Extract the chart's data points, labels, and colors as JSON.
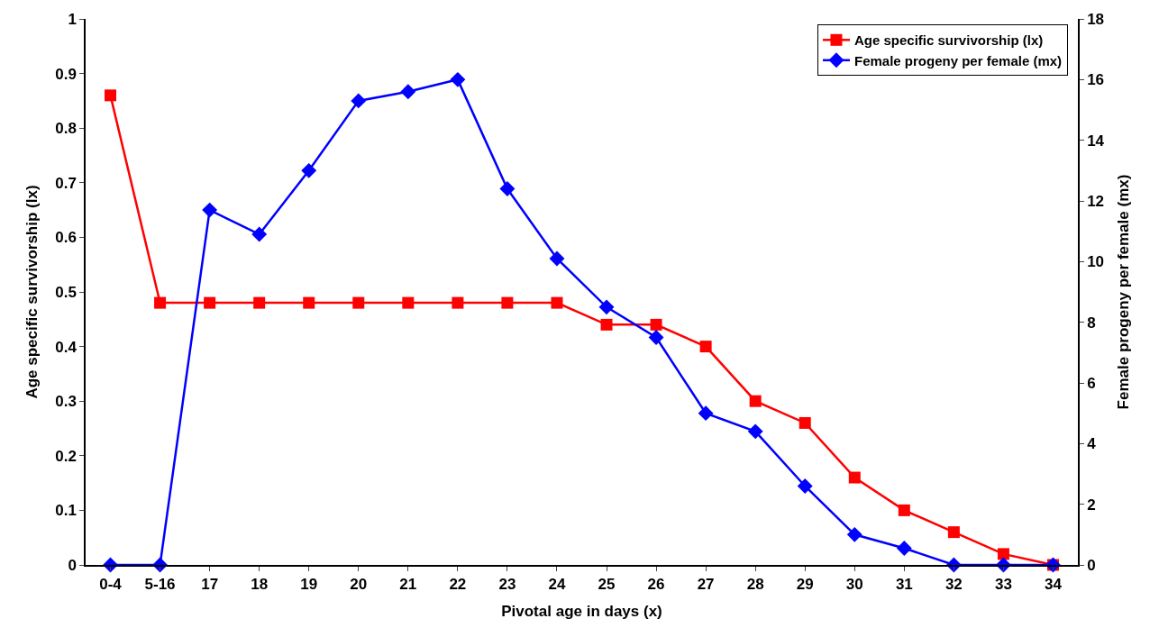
{
  "chart_data": {
    "type": "line",
    "xlabel": "Pivotal age in days (x)",
    "ylabel": "Age specific survivorship (lx)",
    "y2label": "Female progeny per female (mx)",
    "categories": [
      "0-4",
      "5-16",
      "17",
      "18",
      "19",
      "20",
      "21",
      "22",
      "23",
      "24",
      "25",
      "26",
      "27",
      "28",
      "29",
      "30",
      "31",
      "32",
      "33",
      "34"
    ],
    "series": [
      {
        "name": "Age specific survivorship (lx)",
        "color": "#ff0000",
        "marker": "square",
        "values": [
          0.86,
          0.48,
          0.48,
          0.48,
          0.48,
          0.48,
          0.48,
          0.48,
          0.48,
          0.48,
          0.44,
          0.44,
          0.4,
          0.3,
          0.26,
          0.16,
          0.1,
          0.06,
          0.02,
          0
        ]
      },
      {
        "name": "Female progeny per female (mx)",
        "color": "#0000ff",
        "marker": "diamond",
        "axis": "y2",
        "values": [
          0,
          0,
          11.7,
          10.9,
          13.0,
          15.3,
          15.6,
          16.0,
          12.4,
          10.1,
          8.5,
          7.5,
          5.0,
          4.4,
          2.6,
          1.0,
          0.55,
          0,
          0,
          0
        ]
      }
    ],
    "ylim": [
      0,
      1
    ],
    "yticks": [
      0,
      0.1,
      0.2,
      0.3,
      0.4,
      0.5,
      0.6,
      0.7,
      0.8,
      0.9,
      1
    ],
    "y2lim": [
      0,
      18
    ],
    "y2ticks": [
      0,
      2,
      4,
      6,
      8,
      10,
      12,
      14,
      16,
      18
    ],
    "legend": "top right"
  }
}
